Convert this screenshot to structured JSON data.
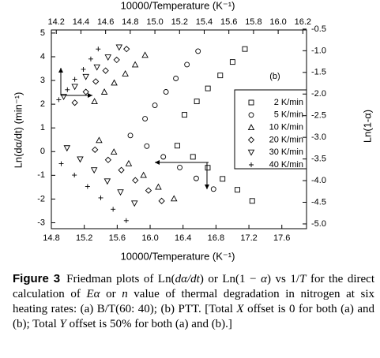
{
  "chart_data": {
    "type": "scatter",
    "title_top": "10000/Temperature (K⁻¹)",
    "xlabel": "10000/Temperature (K⁻¹)",
    "ylabel": "Ln(dα/dt)  (min⁻¹)",
    "y2label": "Ln(1-α)",
    "annotation": "(b)",
    "xlim": [
      14.8,
      17.9
    ],
    "xticks": [
      14.8,
      15.2,
      15.6,
      {
        "value": 16.0,
        "label": "16.0"
      },
      16.4,
      16.8,
      17.2,
      17.6
    ],
    "x2lim": [
      14.16,
      16.23
    ],
    "x2ticks": [
      14.2,
      14.4,
      14.6,
      14.8,
      {
        "value": 15.0,
        "label": "15.0"
      },
      15.2,
      15.4,
      15.6,
      15.8,
      {
        "value": 16.0,
        "label": "16.0"
      },
      16.2
    ],
    "ylim": [
      -3.25,
      5.13
    ],
    "yticks": [
      -3,
      -2,
      -1,
      0,
      1,
      2,
      3,
      4,
      5
    ],
    "y2lim": [
      -5.11,
      -0.52
    ],
    "y2ticks": [
      {
        "value": -5.0,
        "label": "-5.0"
      },
      -4.5,
      {
        "value": -4.0,
        "label": "-4.0"
      },
      -3.5,
      {
        "value": -3.0,
        "label": "-3.0"
      },
      -2.5,
      {
        "value": -2.0,
        "label": "-2.0"
      },
      -1.5,
      {
        "value": -1.0,
        "label": "-1.0"
      },
      -0.5
    ],
    "color": "#000000",
    "series": [
      {
        "name": "2 K/min",
        "marker": "square",
        "x": [
          16.33,
          16.52,
          16.7,
          16.88,
          17.06,
          17.24
        ],
        "values": [
          0.25,
          -0.22,
          -0.68,
          -1.15,
          -1.61,
          -2.08
        ],
        "x2": [
          15.24,
          15.34,
          15.43,
          15.53,
          15.63,
          15.73
        ],
        "values2": [
          -2.48,
          -2.17,
          -1.87,
          -1.57,
          -1.26,
          -0.96
        ]
      },
      {
        "name": "5 K/min",
        "marker": "circle",
        "x": [
          15.76,
          15.96,
          16.16,
          16.36,
          16.56,
          16.77
        ],
        "values": [
          0.68,
          0.23,
          -0.22,
          -0.67,
          -1.13,
          -1.58
        ],
        "x2": [
          14.92,
          15.0,
          15.09,
          15.17,
          15.26,
          15.35
        ],
        "values2": [
          -2.57,
          -2.26,
          -1.95,
          -1.64,
          -1.32,
          -1.01
        ]
      },
      {
        "name": "10 K/min",
        "marker": "triangle-up",
        "x": [
          15.38,
          15.56,
          15.74,
          15.92,
          16.1,
          16.29
        ],
        "values": [
          0.48,
          -0.01,
          -0.5,
          -0.99,
          -1.49,
          -1.98
        ],
        "x2": [
          14.51,
          14.59,
          14.67,
          14.76,
          14.84,
          14.92
        ],
        "values2": [
          -2.17,
          -1.95,
          -1.74,
          -1.53,
          -1.32,
          -1.1
        ]
      },
      {
        "name": "20 K/min",
        "marker": "diamond",
        "x": [
          15.33,
          15.49,
          15.65,
          15.82,
          15.98,
          16.14
        ],
        "values": [
          0.08,
          -0.35,
          -0.78,
          -1.21,
          -1.64,
          -2.08
        ],
        "x2": [
          14.35,
          14.44,
          14.52,
          14.6,
          14.69,
          14.77
        ],
        "values2": [
          -2.2,
          -1.95,
          -1.71,
          -1.46,
          -1.21,
          -0.96
        ]
      },
      {
        "name": "30 K/min",
        "marker": "triangle-down",
        "x": [
          14.99,
          15.15,
          15.32,
          15.48,
          15.64,
          15.81
        ],
        "values": [
          0.15,
          -0.32,
          -0.78,
          -1.25,
          -1.71,
          -2.18
        ],
        "x2": [
          14.26,
          14.35,
          14.44,
          14.53,
          14.62,
          14.71
        ],
        "values2": [
          -2.06,
          -1.83,
          -1.6,
          -1.38,
          -1.15,
          -0.92
        ]
      },
      {
        "name": "40 K/min",
        "marker": "plus",
        "x": [
          14.92,
          15.08,
          15.24,
          15.4,
          15.55,
          15.71
        ],
        "values": [
          -0.51,
          -0.99,
          -1.47,
          -1.95,
          -2.43,
          -2.91
        ],
        "x2": [
          14.22,
          14.29,
          14.35,
          14.42,
          14.48,
          14.54
        ],
        "values2": [
          -2.13,
          -1.9,
          -1.66,
          -1.43,
          -1.19,
          -0.96
        ]
      }
    ]
  },
  "caption": {
    "label": "Figure 3",
    "segments": [
      "Friedman plots of Ln(",
      {
        "text": "dα/dt",
        "italic": true
      },
      ") or Ln(1 − ",
      {
        "text": "α",
        "italic": true
      },
      ") vs 1/",
      {
        "text": "T",
        "italic": true
      },
      " for the direct calculation of ",
      {
        "text": "Eα",
        "italic": true
      },
      " or ",
      {
        "text": "n",
        "italic": true
      },
      " value of thermal degradation in nitrogen at six heating rates: (a) B/T(60: 40); (b) PTT. [Total ",
      {
        "text": "X",
        "italic": true
      },
      " offset is 0 for both (a) and (b); Total ",
      {
        "text": "Y",
        "italic": true
      },
      " offset is 50% for both (a) and (b).]"
    ]
  }
}
